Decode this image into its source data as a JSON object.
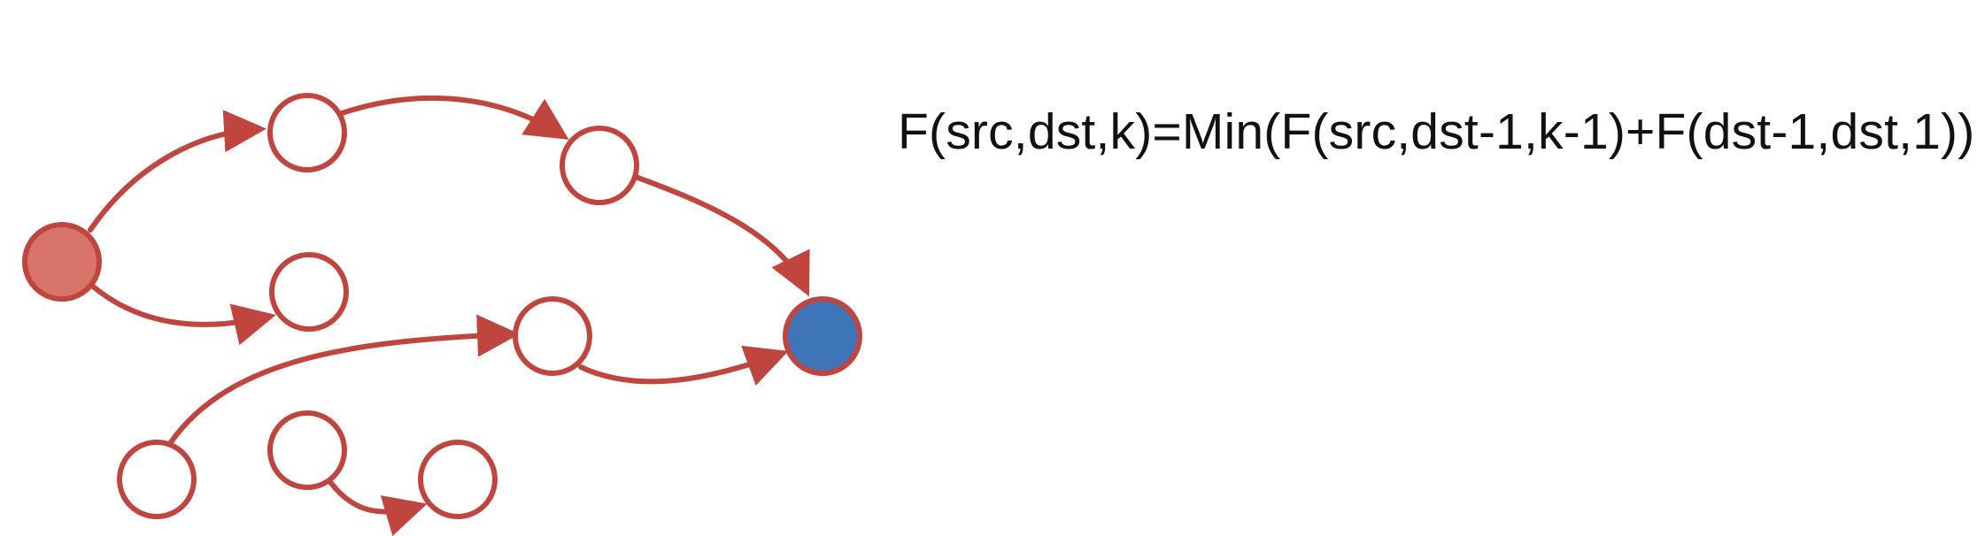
{
  "formula": "F(src,dst,k)=Min(F(src,dst-1,k-1)+F(dst-1,dst,1))",
  "colors": {
    "edge": "#c0453f",
    "node_outline": "#c0453f",
    "node_fill": "#ffffff",
    "source_fill": "#d9746a",
    "destination_fill": "#3e74b8",
    "text": "#111111"
  },
  "graph": {
    "nodes": [
      {
        "id": "src",
        "role": "source"
      },
      {
        "id": "n1",
        "role": "intermediate"
      },
      {
        "id": "n2",
        "role": "intermediate"
      },
      {
        "id": "n3",
        "role": "intermediate"
      },
      {
        "id": "n4",
        "role": "intermediate"
      },
      {
        "id": "n5",
        "role": "intermediate"
      },
      {
        "id": "n6",
        "role": "intermediate"
      },
      {
        "id": "n7",
        "role": "intermediate"
      },
      {
        "id": "dst",
        "role": "destination"
      }
    ],
    "edges": [
      {
        "from": "src",
        "to": "n1"
      },
      {
        "from": "n1",
        "to": "n2"
      },
      {
        "from": "n2",
        "to": "dst"
      },
      {
        "from": "src",
        "to": "n3"
      },
      {
        "from": "n5",
        "to": "n4"
      },
      {
        "from": "n4",
        "to": "dst"
      },
      {
        "from": "n6",
        "to": "n7"
      }
    ]
  }
}
